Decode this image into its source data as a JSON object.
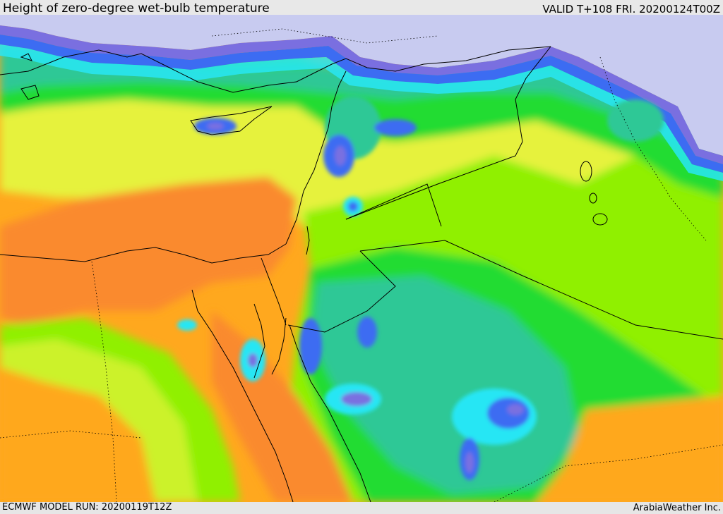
{
  "header": {
    "title": "Height of zero-degree wet-bulb temperature",
    "valid_time": "VALID T+108 FRI. 20200124T00Z"
  },
  "footer": {
    "model_run": "ECMWF MODEL RUN: 20200119T12Z",
    "credit": "ArabiaWeather Inc."
  },
  "map": {
    "colors": {
      "sea_below_zero": "#c8cbf0",
      "violet": "#7a6fe0",
      "blue": "#3c6cf2",
      "cyan": "#28e6f4",
      "teal": "#2dc896",
      "green": "#22dc30",
      "lime": "#90f000",
      "yellow": "#e6f23c",
      "orange": "#ffa81e",
      "dark_orange": "#fa8a2e"
    }
  }
}
